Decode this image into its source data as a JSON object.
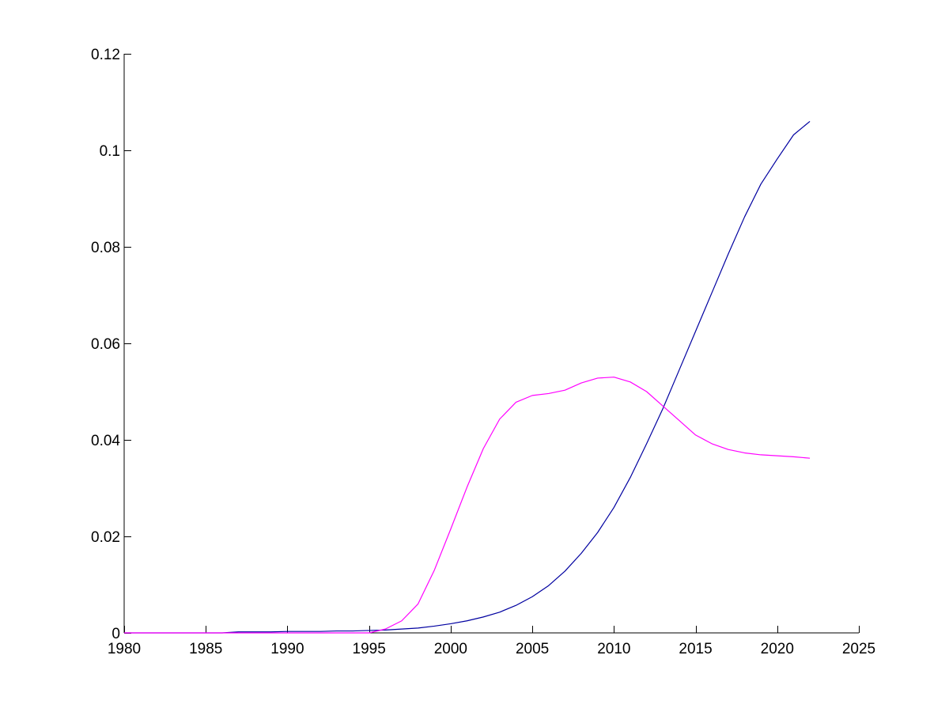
{
  "chart_data": {
    "type": "line",
    "title": "",
    "xlabel": "",
    "ylabel": "",
    "xlim": [
      1980,
      2025
    ],
    "ylim": [
      0,
      0.12
    ],
    "grid": false,
    "legend": "none",
    "x_ticks": [
      1980,
      1985,
      1990,
      1995,
      2000,
      2005,
      2010,
      2015,
      2020,
      2025
    ],
    "x_tick_labels": [
      "1980",
      "1985",
      "1990",
      "1995",
      "2000",
      "2005",
      "2010",
      "2015",
      "2020",
      "2025"
    ],
    "y_ticks": [
      0,
      0.02,
      0.04,
      0.06,
      0.08,
      0.1,
      0.12
    ],
    "y_tick_labels": [
      "0",
      "0.02",
      "0.04",
      "0.06",
      "0.08",
      "0.1",
      "0.12"
    ],
    "series": [
      {
        "color": "#0000a0",
        "x": [
          1980,
          1981,
          1982,
          1983,
          1984,
          1985,
          1986,
          1987,
          1988,
          1989,
          1990,
          1991,
          1992,
          1993,
          1994,
          1995,
          1996,
          1997,
          1998,
          1999,
          2000,
          2001,
          2002,
          2003,
          2004,
          2005,
          2006,
          2007,
          2008,
          2009,
          2010,
          2011,
          2012,
          2013,
          2014,
          2015,
          2016,
          2017,
          2018,
          2019,
          2020,
          2021,
          2022
        ],
        "values": [
          0.0,
          0.0,
          0.0,
          0.0,
          0.0,
          0.0,
          0.0,
          0.0002,
          0.0002,
          0.0002,
          0.0003,
          0.0003,
          0.0003,
          0.0004,
          0.0004,
          0.0005,
          0.0006,
          0.0008,
          0.001,
          0.0014,
          0.0019,
          0.0025,
          0.0033,
          0.0043,
          0.0057,
          0.0075,
          0.0098,
          0.0128,
          0.0165,
          0.0208,
          0.026,
          0.0322,
          0.0392,
          0.0465,
          0.0545,
          0.0625,
          0.0705,
          0.0785,
          0.0862,
          0.093,
          0.0982,
          0.1032,
          0.106
        ]
      },
      {
        "color": "#ff00ff",
        "x": [
          1980,
          1981,
          1982,
          1983,
          1984,
          1985,
          1986,
          1987,
          1988,
          1989,
          1990,
          1991,
          1992,
          1993,
          1994,
          1995,
          1996,
          1997,
          1998,
          1999,
          2000,
          2001,
          2002,
          2003,
          2004,
          2005,
          2006,
          2007,
          2008,
          2009,
          2010,
          2011,
          2012,
          2013,
          2014,
          2015,
          2016,
          2017,
          2018,
          2019,
          2020,
          2021,
          2022
        ],
        "values": [
          0.0,
          0.0,
          0.0,
          0.0,
          0.0,
          0.0,
          0.0,
          0.0,
          0.0,
          0.0,
          0.0,
          0.0,
          0.0,
          0.0,
          0.0,
          0.0,
          0.0008,
          0.0025,
          0.006,
          0.013,
          0.0215,
          0.0302,
          0.0382,
          0.0443,
          0.0478,
          0.0492,
          0.0496,
          0.0503,
          0.0518,
          0.0528,
          0.053,
          0.052,
          0.05,
          0.047,
          0.044,
          0.041,
          0.0392,
          0.038,
          0.0373,
          0.0369,
          0.0367,
          0.0365,
          0.0362
        ]
      }
    ]
  }
}
